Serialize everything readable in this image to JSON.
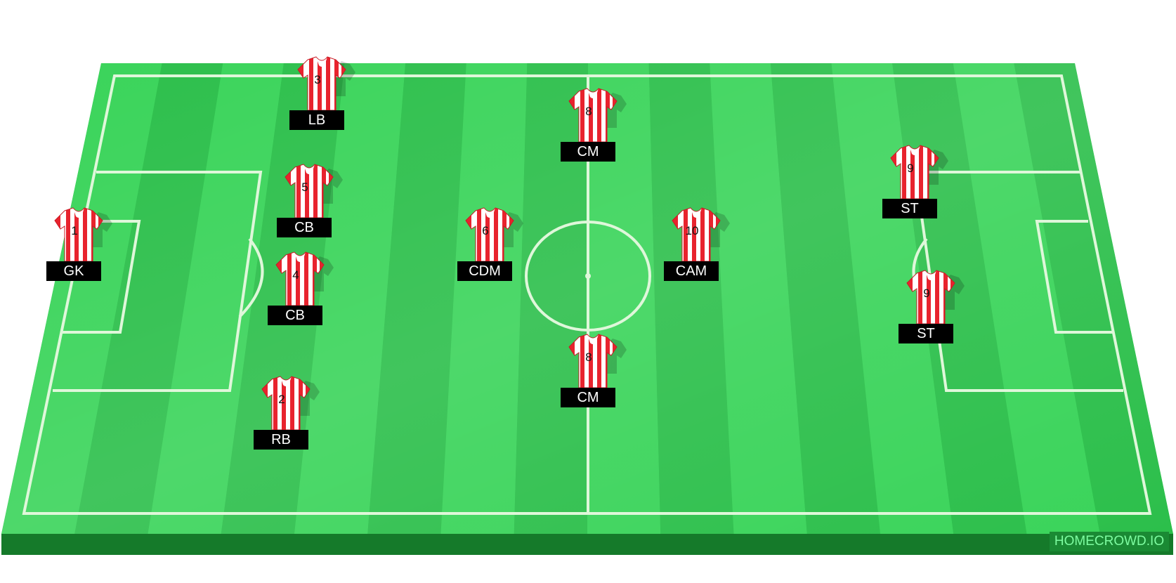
{
  "watermark": "HOMECROWD.IO",
  "colors": {
    "pitch_light": "#4ae66a",
    "pitch_dark": "#1fb53e",
    "pitch_edge": "#2aa746",
    "pitch_front": "#157a2a",
    "lines": "#d9f7d4",
    "shirt_red": "#e8232e",
    "shirt_white": "#ffffff",
    "label_bg": "#000000",
    "label_text": "#ffffff"
  },
  "players": [
    {
      "number": "3",
      "position": "LB"
    },
    {
      "number": "8",
      "position": "CM"
    },
    {
      "number": "9",
      "position": "ST"
    },
    {
      "number": "5",
      "position": "CB"
    },
    {
      "number": "1",
      "position": "GK"
    },
    {
      "number": "6",
      "position": "CDM"
    },
    {
      "number": "10",
      "position": "CAM"
    },
    {
      "number": "4",
      "position": "CB"
    },
    {
      "number": "9",
      "position": "ST"
    },
    {
      "number": "8",
      "position": "CM"
    },
    {
      "number": "2",
      "position": "RB"
    }
  ]
}
